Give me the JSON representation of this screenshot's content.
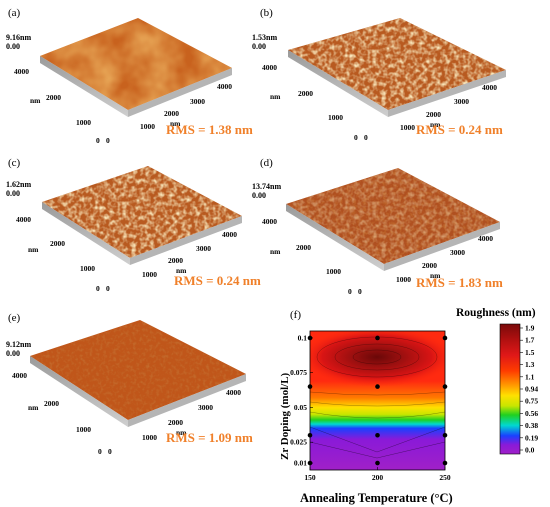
{
  "panels": [
    {
      "label": "(a)",
      "height": "9.16nm",
      "zero": "0.00",
      "rms": "RMS = 1.38 nm"
    },
    {
      "label": "(b)",
      "height": "1.53nm",
      "zero": "0.00",
      "rms": "RMS = 0.24 nm"
    },
    {
      "label": "(c)",
      "height": "1.62nm",
      "zero": "0.00",
      "rms": "RMS = 0.24 nm"
    },
    {
      "label": "(d)",
      "height": "13.74nm",
      "zero": "0.00",
      "rms": "RMS = 1.83 nm"
    },
    {
      "label": "(e)",
      "height": "9.12nm",
      "zero": "0.00",
      "rms": "RMS = 1.09 nm"
    }
  ],
  "afm_axis": {
    "unit": "nm",
    "ticks": [
      "1000",
      "2000",
      "3000",
      "4000"
    ],
    "origin": "0",
    "zero": "0"
  },
  "chart_data": {
    "type": "heatmap",
    "label": "(f)",
    "xlabel": "Annealing Temperature (°C)",
    "ylabel": "Zr Doping (mol/L)",
    "x_ticks": [
      "150",
      "200",
      "250"
    ],
    "y_ticks": [
      "0.01",
      "0.025",
      "0.05",
      "0.075",
      "0.1"
    ],
    "xlim": [
      150,
      250
    ],
    "ylim": [
      0.005,
      0.105
    ],
    "colorbar": {
      "title": "Roughness (nm)",
      "ticks": [
        "1.9",
        "1.7",
        "1.5",
        "1.3",
        "1.1",
        "0.94",
        "0.75",
        "0.56",
        "0.38",
        "0.19",
        "0.0"
      ],
      "colors": [
        "#7a0a0a",
        "#b01010",
        "#e01818",
        "#ff3c00",
        "#ff9000",
        "#ffe000",
        "#c8e600",
        "#20d020",
        "#00d8d0",
        "#1a40ff",
        "#8a1ad8",
        "#a020c8"
      ]
    },
    "points": [
      {
        "x": 150,
        "y": 0.01
      },
      {
        "x": 200,
        "y": 0.01
      },
      {
        "x": 250,
        "y": 0.01
      },
      {
        "x": 150,
        "y": 0.03
      },
      {
        "x": 200,
        "y": 0.03
      },
      {
        "x": 250,
        "y": 0.03
      },
      {
        "x": 150,
        "y": 0.065
      },
      {
        "x": 200,
        "y": 0.065
      },
      {
        "x": 250,
        "y": 0.065
      },
      {
        "x": 150,
        "y": 0.1
      },
      {
        "x": 200,
        "y": 0.1
      },
      {
        "x": 250,
        "y": 0.1
      }
    ]
  }
}
